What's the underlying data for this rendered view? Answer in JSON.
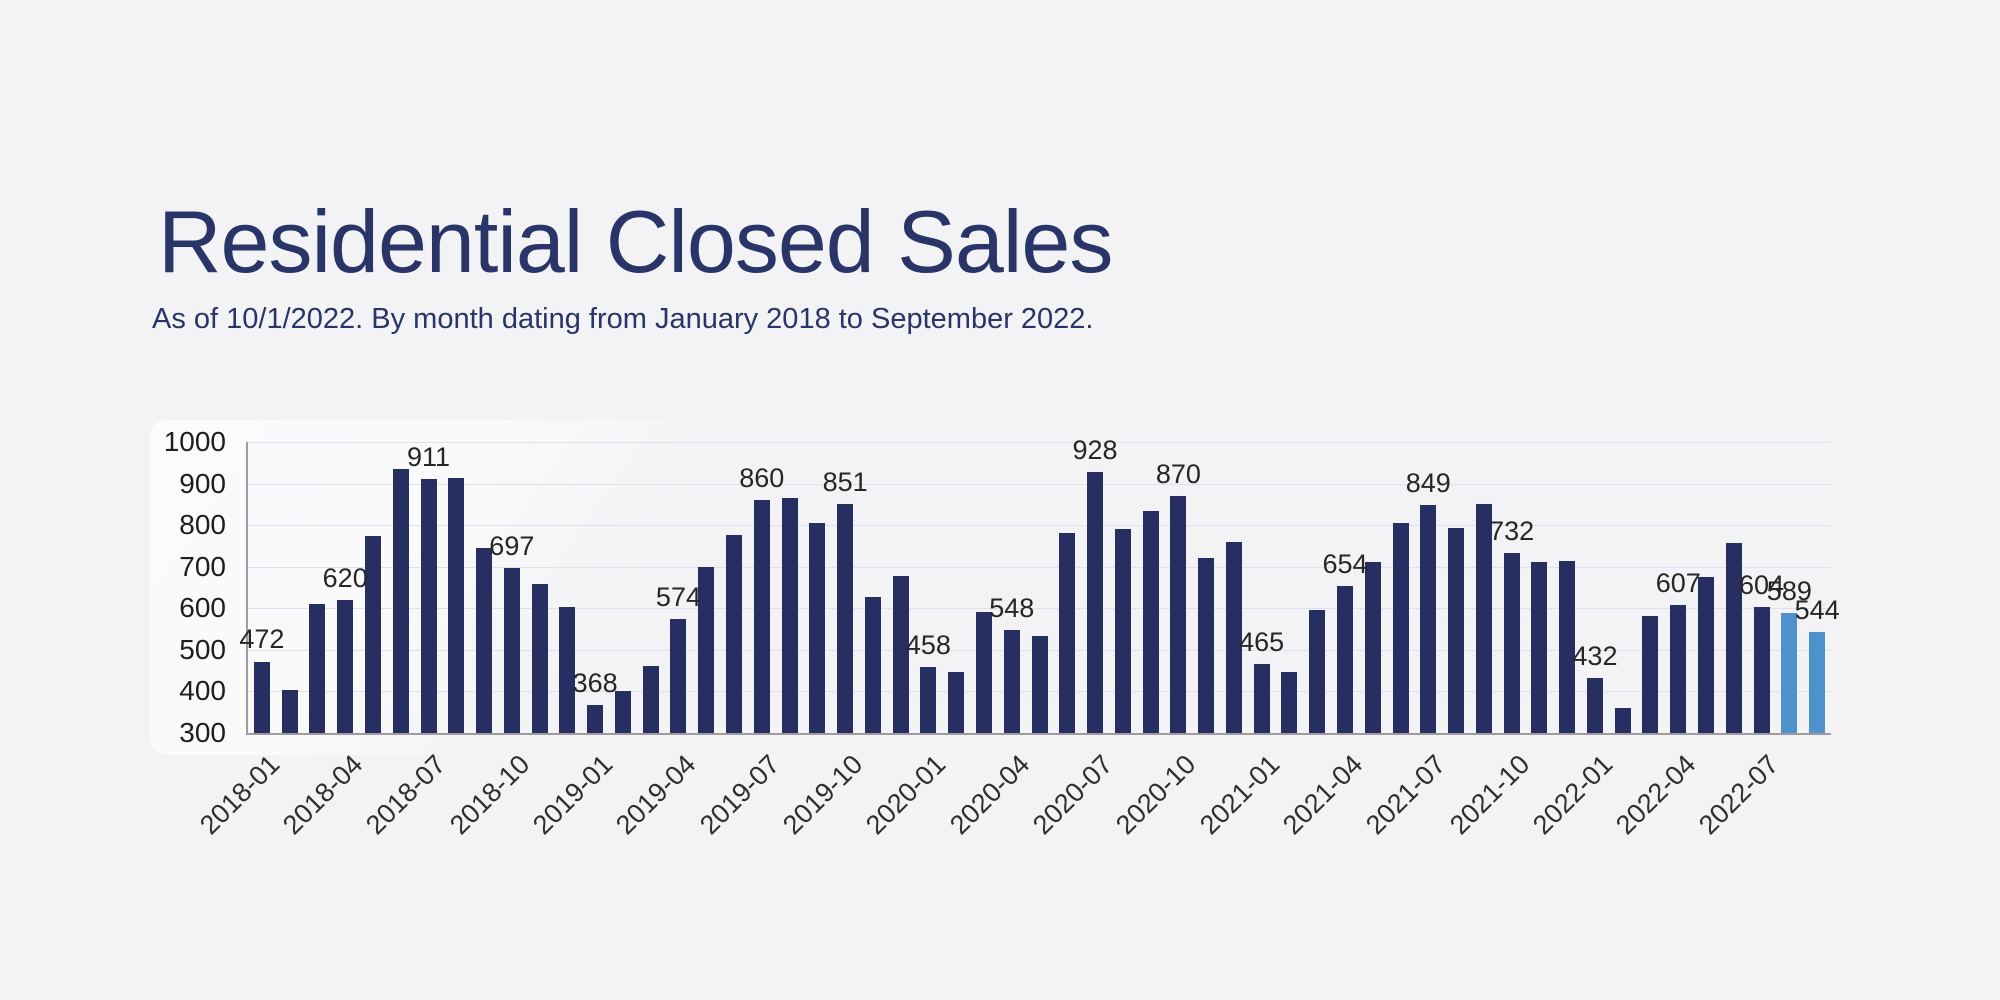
{
  "header": {
    "title": "Residential Closed Sales",
    "subtitle": "As of 10/1/2022. By month dating from January 2018 to September 2022."
  },
  "colors": {
    "title_text": "#293468",
    "bar": "#272f62",
    "bar_highlight": "#4d92cb",
    "gridline": "#dde1ef",
    "axis_line": "#9b9ba0",
    "page_background": "#f3f3f5"
  },
  "chart_data": {
    "type": "bar",
    "title": "Residential Closed Sales",
    "subtitle": "As of 10/1/2022. By month dating from January 2018 to September 2022.",
    "xlabel": "",
    "ylabel": "",
    "ylim": [
      300,
      1000
    ],
    "y_ticks": [
      300,
      400,
      500,
      600,
      700,
      800,
      900,
      1000
    ],
    "grid": true,
    "legend": false,
    "categories": [
      "2018-01",
      "2018-02",
      "2018-03",
      "2018-04",
      "2018-05",
      "2018-06",
      "2018-07",
      "2018-08",
      "2018-09",
      "2018-10",
      "2018-11",
      "2018-12",
      "2019-01",
      "2019-02",
      "2019-03",
      "2019-04",
      "2019-05",
      "2019-06",
      "2019-07",
      "2019-08",
      "2019-09",
      "2019-10",
      "2019-11",
      "2019-12",
      "2020-01",
      "2020-02",
      "2020-03",
      "2020-04",
      "2020-05",
      "2020-06",
      "2020-07",
      "2020-08",
      "2020-09",
      "2020-10",
      "2020-11",
      "2020-12",
      "2021-01",
      "2021-02",
      "2021-03",
      "2021-04",
      "2021-05",
      "2021-06",
      "2021-07",
      "2021-08",
      "2021-09",
      "2021-10",
      "2021-11",
      "2021-12",
      "2022-01",
      "2022-02",
      "2022-03",
      "2022-04",
      "2022-05",
      "2022-06",
      "2022-07",
      "2022-08",
      "2022-09"
    ],
    "values": [
      472,
      403,
      611,
      620,
      775,
      936,
      911,
      913,
      744,
      697,
      659,
      603,
      368,
      400,
      462,
      574,
      700,
      777,
      860,
      866,
      805,
      851,
      628,
      677,
      458,
      446,
      590,
      548,
      533,
      781,
      928,
      790,
      835,
      870,
      721,
      760,
      465,
      446,
      596,
      654,
      712,
      806,
      849,
      794,
      850,
      732,
      712,
      714,
      432,
      360,
      581,
      607,
      675,
      756,
      604,
      589,
      544
    ],
    "data_labels": [
      472,
      null,
      null,
      620,
      null,
      null,
      911,
      null,
      null,
      697,
      null,
      null,
      368,
      null,
      null,
      574,
      null,
      null,
      860,
      null,
      null,
      851,
      null,
      null,
      458,
      null,
      null,
      548,
      null,
      null,
      928,
      null,
      null,
      870,
      null,
      null,
      465,
      null,
      null,
      654,
      null,
      null,
      849,
      null,
      null,
      732,
      null,
      null,
      432,
      null,
      null,
      607,
      null,
      null,
      604,
      589,
      544
    ],
    "x_tick_every": 3,
    "x_tick_labels": [
      "2018-01",
      "2018-04",
      "2018-07",
      "2018-10",
      "2019-01",
      "2019-04",
      "2019-07",
      "2019-10",
      "2020-01",
      "2020-04",
      "2020-07",
      "2020-10",
      "2021-01",
      "2021-04",
      "2021-07",
      "2021-10",
      "2022-01",
      "2022-04",
      "2022-07"
    ],
    "highlight_indices": [
      55,
      56
    ],
    "bar_color": "#272f62",
    "highlight_color": "#4d92cb"
  }
}
